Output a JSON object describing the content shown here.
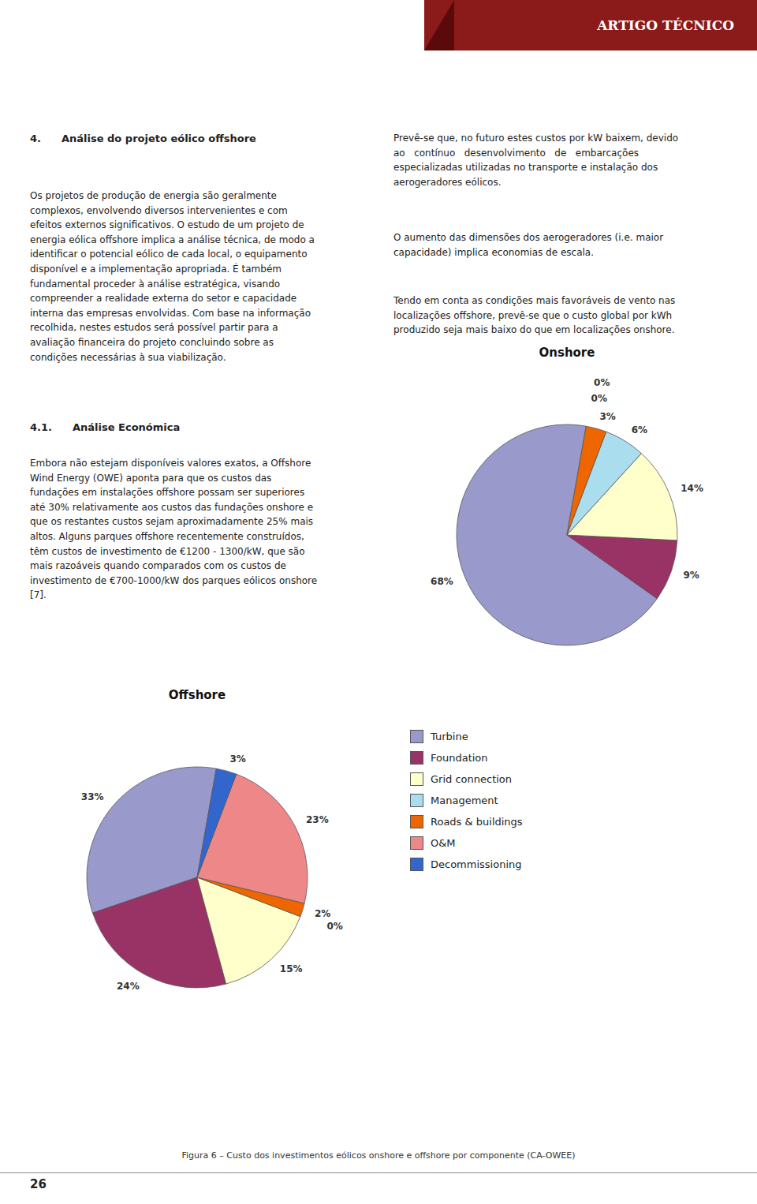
{
  "annotations": [
    "ARTIGO TÉCNICO",
    "4.  Análise do projeto eólico offshore",
    "Os projetos de produção de energia são geralmente\ncomplexos, envolvendo diversos intervenientes e com\nefeitos externos significativos. O estudo de um projeto de\nenergia eólica offshore implica a análise técnica, de modo a\nidentificar o potencial eólico de cada local, o equipamento\ndisponível e a implementação apropriada. É também\nfundamental proceder à análise estratégica, visando\ncompreender a realidade externa do setor e capacidade\ninterna das empresas envolvidas. Com base na informação\nrecolhida, nestes estudos será possível partir para a\navaliação financeira do projeto concluindo sobre as\ncondições necessárias à sua viabilização.",
    "4.1.  Análise Económica",
    "Embora não estejam disponíveis valores exatos, a Offshore\nWind Energy (OWE) aponta para que os custos das\nfundações em instalações offshore possam ser superiores\naté 30% relativamente aos custos das fundações onshore e\nque os restantes custos sejam aproximadamente 25% mais\naltos. Alguns parques offshore recentemente construídos,\ntêm custos de investimento de €1200 - 1300/kW, que são\nmais razoáveis quando comparados com os custos de\ninvestimento de €700-1000/kW dos parques eólicos onshore\n[7].",
    "Prevê-se que, no futuro estes custos por kW baixem, devido\nao   contínuo   desenvolvimento   de   embarcações\nespecializadas utilizadas no transporte e instalação dos\naerogeradores eólicos.",
    "O aumento das dimensões dos aerogeradores (i.e. maior\ncapacidade) implica economias de escala.",
    "Tendo em conta as condições mais favoráveis de vento nas\nlocalizações offshore, prevê-se que o custo global por kWh\nproduzido seja mais baixo do que em localizações onshore.",
    "Figura 6 – Custo dos investimentos eólicos onshore e offshore por componente (CA-OWEE)",
    "26"
  ],
  "chart_data": [
    {
      "type": "pie",
      "title": "Onshore",
      "categories": [
        "Turbine",
        "Foundation",
        "Grid connection",
        "Management",
        "Roads & buildings",
        "O&M",
        "Decommissioning"
      ],
      "values": [
        68,
        9,
        14,
        6,
        3,
        0,
        0
      ],
      "value_labels": [
        "68%",
        "9%",
        "14%",
        "6%",
        "3%",
        "0%",
        "0%"
      ],
      "colors": [
        "#9999cc",
        "#993366",
        "#ffffcc",
        "#aaddee",
        "#ee6600",
        "#ee9999",
        "#3366cc"
      ],
      "data_labels": true
    },
    {
      "type": "pie",
      "title": "Offshore",
      "categories": [
        "Turbine",
        "Foundation",
        "Grid connection",
        "Management",
        "Roads & buildings",
        "O&M",
        "Decommissioning"
      ],
      "values": [
        33,
        24,
        15,
        0,
        2,
        23,
        3
      ],
      "value_labels": [
        "33%",
        "24%",
        "15%",
        "0%",
        "2%",
        "23%",
        "3%"
      ],
      "colors": [
        "#9999cc",
        "#993366",
        "#ffffcc",
        "#aaddee",
        "#ee6600",
        "#ee8888",
        "#3366cc"
      ],
      "data_labels": true,
      "legend": "right"
    }
  ]
}
